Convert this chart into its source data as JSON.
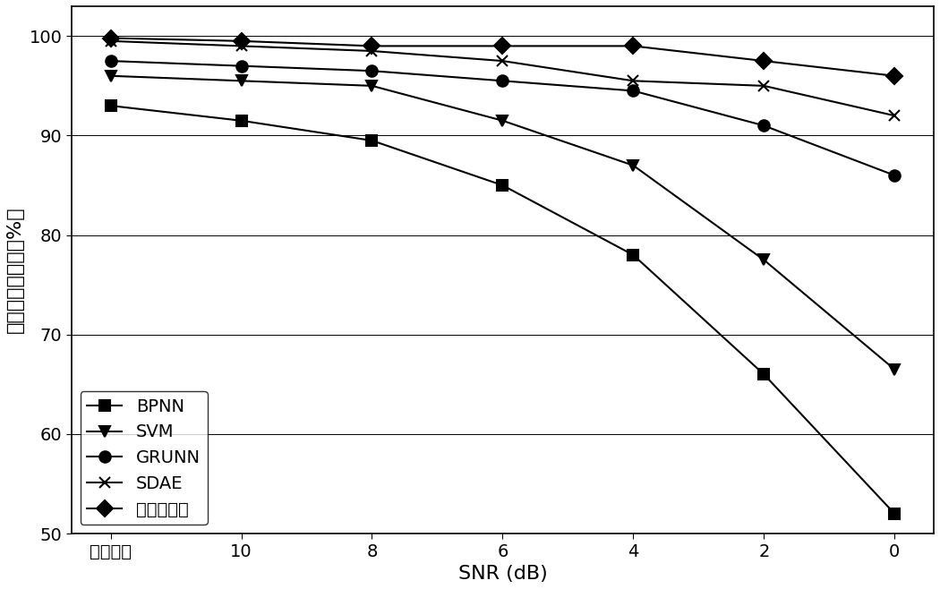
{
  "x_labels": [
    "原始信号",
    "10",
    "8",
    "6",
    "4",
    "2",
    "0"
  ],
  "x_positions": [
    0,
    1,
    2,
    3,
    4,
    5,
    6
  ],
  "series": [
    {
      "name": "BPNN",
      "marker": "s",
      "color": "#000000",
      "linewidth": 1.5,
      "markersize": 9,
      "values": [
        93.0,
        91.5,
        89.5,
        85.0,
        78.0,
        66.0,
        52.0
      ]
    },
    {
      "name": "SVM",
      "marker": "v",
      "color": "#000000",
      "linewidth": 1.5,
      "markersize": 9,
      "values": [
        96.0,
        95.5,
        95.0,
        91.5,
        87.0,
        77.5,
        66.5
      ]
    },
    {
      "name": "GRUNN",
      "marker": "o",
      "color": "#000000",
      "linewidth": 1.5,
      "markersize": 9,
      "values": [
        97.5,
        97.0,
        96.5,
        95.5,
        94.5,
        91.0,
        86.0
      ]
    },
    {
      "name": "SDAE",
      "marker": "x",
      "color": "#000000",
      "linewidth": 1.5,
      "markersize": 9,
      "values": [
        99.5,
        99.0,
        98.5,
        97.5,
        95.5,
        95.0,
        92.0
      ]
    },
    {
      "name": "提出的方法",
      "marker": "D",
      "color": "#000000",
      "linewidth": 1.5,
      "markersize": 9,
      "values": [
        99.8,
        99.5,
        99.0,
        99.0,
        99.0,
        97.5,
        96.0
      ]
    }
  ],
  "ylabel": "待诊样本准确率（%）",
  "xlabel": "SNR (dB)",
  "ylim": [
    50,
    103
  ],
  "yticks": [
    50,
    60,
    70,
    80,
    90,
    100
  ],
  "background_color": "#ffffff",
  "legend_loc": "lower left",
  "title_fontsize": 14,
  "axis_fontsize": 16,
  "tick_fontsize": 14,
  "legend_fontsize": 14
}
